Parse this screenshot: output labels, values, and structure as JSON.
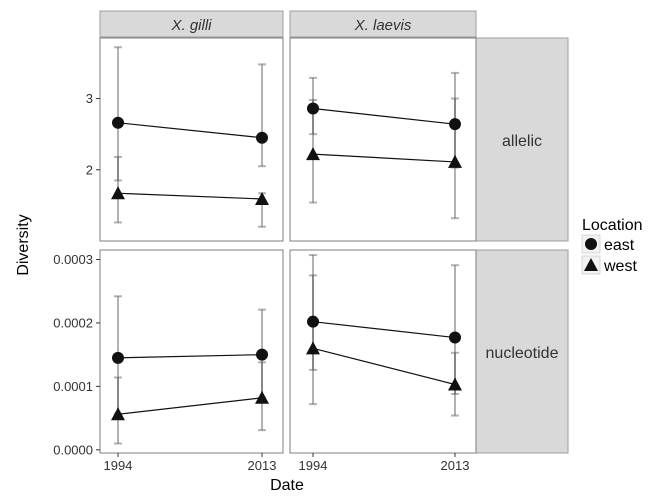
{
  "chart_data": {
    "type": "line",
    "xlabel": "Date",
    "ylabel": "Diversity",
    "x": [
      "1994",
      "2013"
    ],
    "columns": [
      "X. gilli",
      "X. laevis"
    ],
    "rows": [
      "allelic",
      "nucleotide"
    ],
    "legend": {
      "title": "Location",
      "placement": "right",
      "entries": [
        {
          "name": "east",
          "marker": "circle"
        },
        {
          "name": "west",
          "marker": "triangle"
        }
      ]
    },
    "y_axes": {
      "allelic": {
        "ylim": [
          1.0,
          3.85
        ],
        "ticks": [
          "2",
          "3"
        ]
      },
      "nucleotide": {
        "ylim": [
          -5e-06,
          0.000315
        ],
        "ticks": [
          "0.0000",
          "0.0001",
          "0.0002",
          "0.0003"
        ]
      }
    },
    "panels": [
      {
        "column": "X. gilli",
        "row": "allelic",
        "series": [
          {
            "name": "east",
            "values": [
              2.66,
              2.45
            ],
            "err_low": [
              1.85,
              2.05
            ],
            "err_high": [
              3.72,
              3.48
            ]
          },
          {
            "name": "west",
            "values": [
              1.67,
              1.59
            ],
            "err_low": [
              1.26,
              1.2
            ],
            "err_high": [
              2.18,
              1.67
            ]
          }
        ]
      },
      {
        "column": "X. laevis",
        "row": "allelic",
        "series": [
          {
            "name": "east",
            "values": [
              2.86,
              2.64
            ],
            "err_low": [
              2.5,
              2.03
            ],
            "err_high": [
              3.29,
              3.36
            ]
          },
          {
            "name": "west",
            "values": [
              2.22,
              2.11
            ],
            "err_low": [
              1.54,
              1.32
            ],
            "err_high": [
              2.98,
              3.0
            ]
          }
        ]
      },
      {
        "column": "X. gilli",
        "row": "nucleotide",
        "series": [
          {
            "name": "east",
            "values": [
              0.000145,
              0.00015
            ],
            "err_low": [
              5.7e-05,
              8.2e-05
            ],
            "err_high": [
              0.000242,
              0.000221
            ]
          },
          {
            "name": "west",
            "values": [
              5.6e-05,
              8.2e-05
            ],
            "err_low": [
              1e-05,
              3.1e-05
            ],
            "err_high": [
              0.000114,
              0.000138
            ]
          }
        ]
      },
      {
        "column": "X. laevis",
        "row": "nucleotide",
        "series": [
          {
            "name": "east",
            "values": [
              0.000202,
              0.000177
            ],
            "err_low": [
              0.000126,
              8.8e-05
            ],
            "err_high": [
              0.000307,
              0.000291
            ]
          },
          {
            "name": "west",
            "values": [
              0.00016,
              0.000103
            ],
            "err_low": [
              7.2e-05,
              5.4e-05
            ],
            "err_high": [
              0.000275,
              0.000153
            ]
          }
        ]
      }
    ],
    "grid": false
  }
}
